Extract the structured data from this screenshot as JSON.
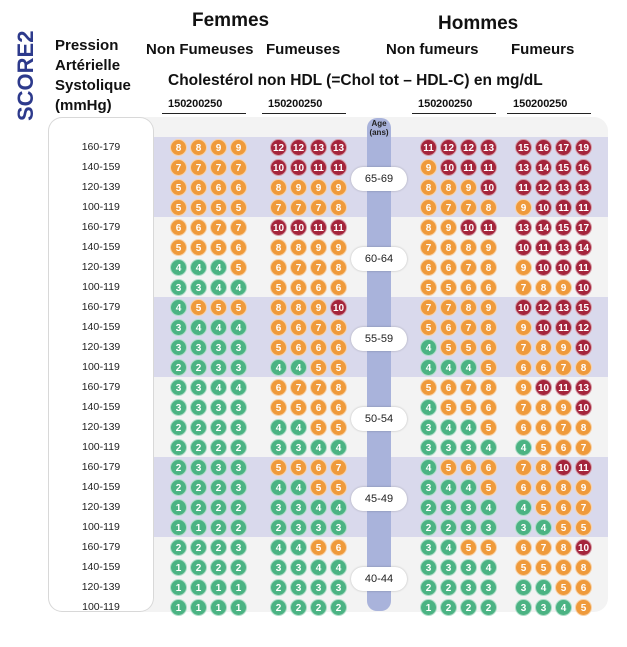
{
  "titles": {
    "vertical": "SCORE2",
    "women": "Femmes",
    "men": "Hommes",
    "women_nonsmokers": "Non Fumeuses",
    "women_smokers": "Fumeuses",
    "men_nonsmokers": "Non fumeurs",
    "men_smokers": "Fumeurs",
    "cholesterol": "Cholestérol non HDL (=Chol tot – HDL-C) en mg/dL",
    "pa_line1": "Pression",
    "pa_line2": "Artérielle",
    "pa_line3": "Systolique",
    "pa_line4": "(mmHg)",
    "age_line1": "Age",
    "age_line2": "(ans)"
  },
  "colors": {
    "green": "#4bb383",
    "orange": "#ef9a3b",
    "red": "#a4243b",
    "band": "#d9d9ec",
    "title_blue": "#2d3a8c"
  },
  "chart_data": {
    "type": "heatmap",
    "cholesterol_ticks": [
      "150",
      "200",
      "250"
    ],
    "sbp_rows": [
      "160-179",
      "140-159",
      "120-139",
      "100-119"
    ],
    "groups": [
      "Femmes Non Fumeuses",
      "Femmes Fumeuses",
      "Hommes Non fumeurs",
      "Hommes Fumeurs"
    ],
    "age_bands": [
      {
        "age": "65-69",
        "rows": [
          [
            [
              8,
              8,
              9,
              9
            ],
            [
              12,
              12,
              13,
              13
            ],
            [
              11,
              12,
              12,
              13
            ],
            [
              15,
              16,
              17,
              19
            ]
          ],
          [
            [
              7,
              7,
              7,
              7
            ],
            [
              10,
              10,
              11,
              11
            ],
            [
              9,
              10,
              11,
              11
            ],
            [
              13,
              14,
              15,
              16
            ]
          ],
          [
            [
              5,
              6,
              6,
              6
            ],
            [
              8,
              9,
              9,
              9
            ],
            [
              8,
              8,
              9,
              10
            ],
            [
              11,
              12,
              13,
              13
            ]
          ],
          [
            [
              5,
              5,
              5,
              5
            ],
            [
              7,
              7,
              7,
              8
            ],
            [
              6,
              7,
              7,
              8
            ],
            [
              9,
              10,
              11,
              11
            ]
          ]
        ]
      },
      {
        "age": "60-64",
        "rows": [
          [
            [
              6,
              6,
              7,
              7
            ],
            [
              10,
              10,
              11,
              11
            ],
            [
              8,
              9,
              10,
              11
            ],
            [
              13,
              14,
              15,
              17
            ]
          ],
          [
            [
              5,
              5,
              5,
              6
            ],
            [
              8,
              8,
              9,
              9
            ],
            [
              7,
              8,
              8,
              9
            ],
            [
              10,
              11,
              13,
              14
            ]
          ],
          [
            [
              4,
              4,
              4,
              5
            ],
            [
              6,
              7,
              7,
              8
            ],
            [
              6,
              6,
              7,
              8
            ],
            [
              9,
              10,
              10,
              11
            ]
          ],
          [
            [
              3,
              3,
              4,
              4
            ],
            [
              5,
              6,
              6,
              6
            ],
            [
              5,
              5,
              6,
              6
            ],
            [
              7,
              8,
              9,
              10
            ]
          ]
        ]
      },
      {
        "age": "55-59",
        "rows": [
          [
            [
              4,
              5,
              5,
              5
            ],
            [
              8,
              8,
              9,
              10
            ],
            [
              7,
              7,
              8,
              9
            ],
            [
              10,
              12,
              13,
              15
            ]
          ],
          [
            [
              3,
              4,
              4,
              4
            ],
            [
              6,
              6,
              7,
              8
            ],
            [
              5,
              6,
              7,
              8
            ],
            [
              9,
              10,
              11,
              12
            ]
          ],
          [
            [
              3,
              3,
              3,
              3
            ],
            [
              5,
              6,
              6,
              6
            ],
            [
              4,
              5,
              5,
              6
            ],
            [
              7,
              8,
              9,
              10
            ]
          ],
          [
            [
              2,
              2,
              3,
              3
            ],
            [
              4,
              4,
              5,
              5
            ],
            [
              4,
              4,
              4,
              5
            ],
            [
              6,
              6,
              7,
              8
            ]
          ]
        ]
      },
      {
        "age": "50-54",
        "rows": [
          [
            [
              3,
              3,
              4,
              4
            ],
            [
              6,
              7,
              7,
              8
            ],
            [
              5,
              6,
              7,
              8
            ],
            [
              9,
              10,
              11,
              13
            ]
          ],
          [
            [
              3,
              3,
              3,
              3
            ],
            [
              5,
              5,
              6,
              6
            ],
            [
              4,
              5,
              5,
              6
            ],
            [
              7,
              8,
              9,
              10
            ]
          ],
          [
            [
              2,
              2,
              2,
              3
            ],
            [
              4,
              4,
              5,
              5
            ],
            [
              3,
              4,
              4,
              5
            ],
            [
              6,
              6,
              7,
              8
            ]
          ],
          [
            [
              2,
              2,
              2,
              2
            ],
            [
              3,
              3,
              4,
              4
            ],
            [
              3,
              3,
              3,
              4
            ],
            [
              4,
              5,
              6,
              7
            ]
          ]
        ]
      },
      {
        "age": "45-49",
        "rows": [
          [
            [
              2,
              3,
              3,
              3
            ],
            [
              5,
              5,
              6,
              7
            ],
            [
              4,
              5,
              6,
              6
            ],
            [
              7,
              8,
              10,
              11
            ]
          ],
          [
            [
              2,
              2,
              2,
              3
            ],
            [
              4,
              4,
              5,
              5
            ],
            [
              3,
              4,
              4,
              5
            ],
            [
              6,
              6,
              8,
              9
            ]
          ],
          [
            [
              1,
              2,
              2,
              2
            ],
            [
              3,
              3,
              4,
              4
            ],
            [
              2,
              3,
              3,
              4
            ],
            [
              4,
              5,
              6,
              7
            ]
          ],
          [
            [
              1,
              1,
              2,
              2
            ],
            [
              2,
              3,
              3,
              3
            ],
            [
              2,
              2,
              3,
              3
            ],
            [
              3,
              4,
              5,
              5
            ]
          ]
        ]
      },
      {
        "age": "40-44",
        "rows": [
          [
            [
              2,
              2,
              2,
              3
            ],
            [
              4,
              4,
              5,
              6
            ],
            [
              3,
              4,
              5,
              5
            ],
            [
              6,
              7,
              8,
              10
            ]
          ],
          [
            [
              1,
              2,
              2,
              2
            ],
            [
              3,
              3,
              4,
              4
            ],
            [
              3,
              3,
              3,
              4
            ],
            [
              5,
              5,
              6,
              8
            ]
          ],
          [
            [
              1,
              1,
              1,
              1
            ],
            [
              2,
              3,
              3,
              3
            ],
            [
              2,
              2,
              3,
              3
            ],
            [
              3,
              4,
              5,
              6
            ]
          ],
          [
            [
              1,
              1,
              1,
              1
            ],
            [
              2,
              2,
              2,
              2
            ],
            [
              1,
              2,
              2,
              2
            ],
            [
              3,
              3,
              4,
              5
            ]
          ]
        ]
      }
    ]
  }
}
